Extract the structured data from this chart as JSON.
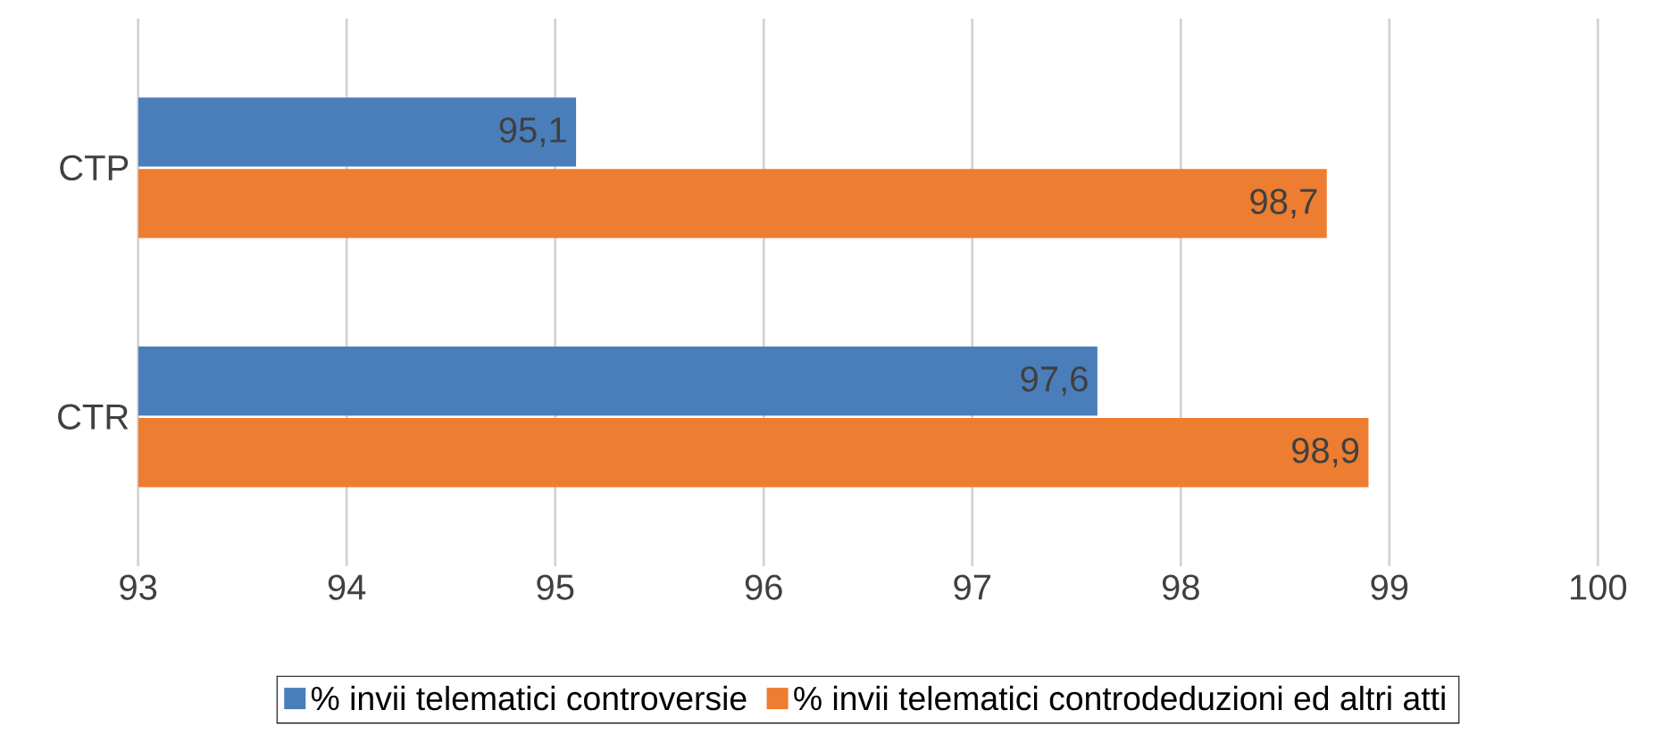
{
  "chart_data": {
    "type": "bar",
    "orientation": "horizontal",
    "categories": [
      "CTP",
      "CTR"
    ],
    "series": [
      {
        "name": "% invii telematici controversie",
        "color": "#4a7ebb",
        "values": [
          95.1,
          97.6
        ],
        "value_labels": [
          "95,1",
          "97,6"
        ]
      },
      {
        "name": "% invii telematici controdeduzioni ed altri atti",
        "color": "#ed7d31",
        "values": [
          98.7,
          98.9
        ],
        "value_labels": [
          "98,7",
          "98,9"
        ]
      }
    ],
    "xlim": [
      93,
      100
    ],
    "xticks": [
      93,
      94,
      95,
      96,
      97,
      98,
      99,
      100
    ],
    "grid": "x",
    "legend": "bottom"
  }
}
